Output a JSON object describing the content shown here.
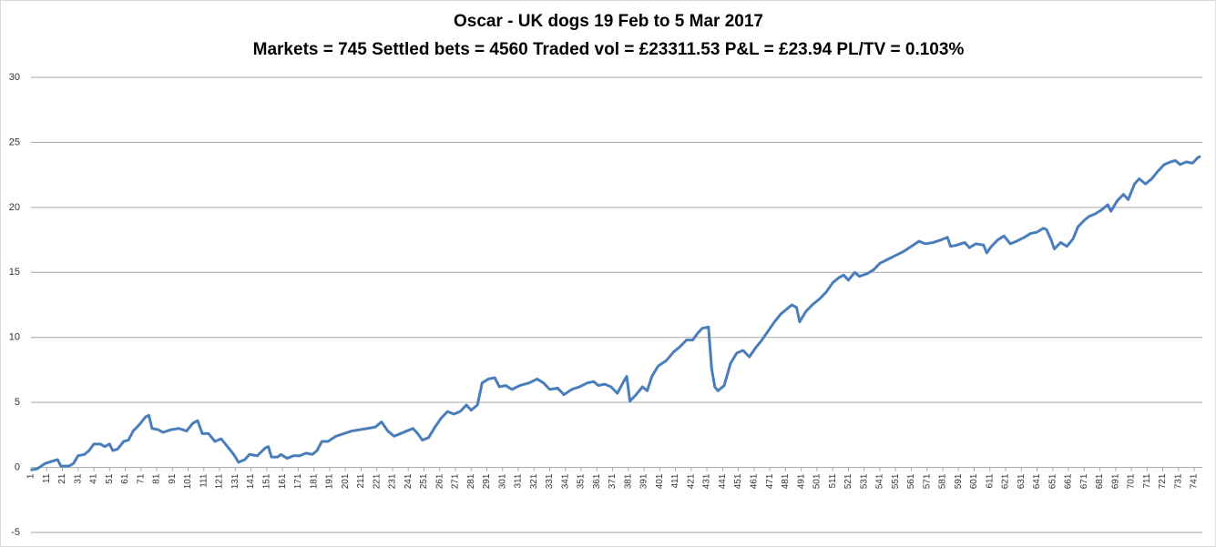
{
  "chart_data": {
    "type": "line",
    "title": "Oscar - UK dogs 19 Feb to 5 Mar 2017",
    "subtitle": "Markets = 745  Settled bets = 4560  Traded vol = £23311.53  P&L = £23.94  PL/TV = 0.103%",
    "x": [
      1,
      5,
      10,
      15,
      18,
      20,
      25,
      28,
      31,
      35,
      38,
      41,
      45,
      48,
      51,
      53,
      56,
      60,
      63,
      66,
      70,
      74,
      76,
      78,
      82,
      85,
      90,
      95,
      100,
      104,
      107,
      110,
      114,
      118,
      122,
      126,
      130,
      133,
      137,
      140,
      145,
      150,
      152,
      154,
      158,
      160,
      164,
      168,
      172,
      176,
      180,
      183,
      186,
      190,
      195,
      200,
      205,
      210,
      215,
      220,
      224,
      228,
      232,
      236,
      240,
      244,
      247,
      250,
      254,
      258,
      262,
      266,
      270,
      274,
      278,
      281,
      285,
      288,
      292,
      296,
      299,
      303,
      307,
      312,
      318,
      323,
      327,
      331,
      336,
      340,
      345,
      350,
      355,
      359,
      362,
      366,
      370,
      374,
      378,
      380,
      382,
      386,
      390,
      393,
      396,
      400,
      405,
      410,
      414,
      418,
      422,
      425,
      428,
      432,
      434,
      436,
      438,
      442,
      446,
      450,
      454,
      458,
      462,
      466,
      470,
      474,
      478,
      482,
      485,
      488,
      490,
      494,
      498,
      503,
      507,
      511,
      515,
      518,
      521,
      525,
      528,
      533,
      537,
      541,
      546,
      551,
      556,
      561,
      566,
      570,
      575,
      580,
      584,
      586,
      590,
      595,
      598,
      602,
      607,
      609,
      612,
      616,
      620,
      624,
      628,
      633,
      637,
      641,
      645,
      647,
      650,
      652,
      656,
      660,
      664,
      667,
      671,
      674,
      678,
      682,
      686,
      688,
      692,
      696,
      699,
      703,
      706,
      710,
      714,
      718,
      722,
      726,
      729,
      732,
      736,
      740,
      743,
      745
    ],
    "series": [
      {
        "name": "P&L",
        "color": "#4a7ebb",
        "values": [
          -0.2,
          -0.1,
          0.3,
          0.5,
          0.6,
          0.1,
          0.1,
          0.3,
          0.9,
          1.0,
          1.3,
          1.8,
          1.8,
          1.6,
          1.8,
          1.3,
          1.4,
          2.0,
          2.1,
          2.8,
          3.3,
          3.9,
          4.0,
          3.0,
          2.9,
          2.7,
          2.9,
          3.0,
          2.8,
          3.4,
          3.6,
          2.6,
          2.6,
          2.0,
          2.2,
          1.6,
          1.0,
          0.4,
          0.6,
          1.0,
          0.9,
          1.5,
          1.6,
          0.8,
          0.8,
          1.0,
          0.7,
          0.9,
          0.9,
          1.1,
          1.0,
          1.3,
          2.0,
          2.0,
          2.4,
          2.6,
          2.8,
          2.9,
          3.0,
          3.1,
          3.5,
          2.8,
          2.4,
          2.6,
          2.8,
          3.0,
          2.6,
          2.1,
          2.3,
          3.1,
          3.8,
          4.3,
          4.1,
          4.3,
          4.8,
          4.4,
          4.8,
          6.5,
          6.8,
          6.9,
          6.2,
          6.3,
          6.0,
          6.3,
          6.5,
          6.8,
          6.5,
          6.0,
          6.1,
          5.6,
          6.0,
          6.2,
          6.5,
          6.6,
          6.3,
          6.4,
          6.2,
          5.7,
          6.6,
          7.0,
          5.1,
          5.6,
          6.2,
          5.9,
          7.0,
          7.8,
          8.2,
          8.9,
          9.3,
          9.8,
          9.8,
          10.3,
          10.7,
          10.8,
          7.6,
          6.2,
          5.9,
          6.3,
          8.0,
          8.8,
          9.0,
          8.5,
          9.2,
          9.8,
          10.5,
          11.2,
          11.8,
          12.2,
          12.5,
          12.3,
          11.2,
          12.0,
          12.5,
          13.0,
          13.5,
          14.2,
          14.6,
          14.8,
          14.4,
          15.0,
          14.7,
          14.9,
          15.2,
          15.7,
          16.0,
          16.3,
          16.6,
          17.0,
          17.4,
          17.2,
          17.3,
          17.5,
          17.7,
          17.0,
          17.1,
          17.3,
          16.9,
          17.2,
          17.1,
          16.5,
          17.0,
          17.5,
          17.8,
          17.2,
          17.4,
          17.7,
          18.0,
          18.1,
          18.4,
          18.3,
          17.5,
          16.8,
          17.3,
          17.0,
          17.6,
          18.5,
          19.0,
          19.3,
          19.5,
          19.8,
          20.2,
          19.7,
          20.5,
          21.0,
          20.6,
          21.8,
          22.2,
          21.8,
          22.2,
          22.8,
          23.3,
          23.5,
          23.6,
          23.3,
          23.5,
          23.4,
          23.8,
          23.94
        ]
      }
    ],
    "xlim": [
      1,
      745
    ],
    "xticks": [
      1,
      11,
      21,
      31,
      41,
      51,
      61,
      71,
      81,
      91,
      101,
      111,
      121,
      131,
      141,
      151,
      161,
      171,
      181,
      191,
      201,
      211,
      221,
      231,
      241,
      251,
      261,
      271,
      281,
      291,
      301,
      311,
      321,
      331,
      341,
      351,
      361,
      371,
      381,
      391,
      401,
      411,
      421,
      431,
      441,
      451,
      461,
      471,
      481,
      491,
      501,
      511,
      521,
      531,
      541,
      551,
      561,
      571,
      581,
      591,
      601,
      611,
      621,
      631,
      641,
      651,
      661,
      671,
      681,
      691,
      701,
      711,
      721,
      731,
      741
    ],
    "ylim": [
      -5,
      30
    ],
    "yticks": [
      -5,
      0,
      5,
      10,
      15,
      20,
      25,
      30
    ],
    "grid": true
  }
}
